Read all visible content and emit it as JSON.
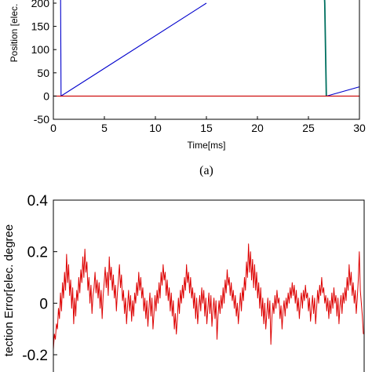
{
  "chart_data": [
    {
      "type": "line",
      "xlabel": "Time[ms]",
      "ylabel": "Position [elec.",
      "caption": "(a)",
      "xlim": [
        0,
        30
      ],
      "ylim": [
        -50,
        200
      ],
      "xticks": [
        "0",
        "5",
        "10",
        "15",
        "20",
        "25",
        "30"
      ],
      "yticks": [
        "-50",
        "0",
        "50",
        "100",
        "150",
        "200"
      ],
      "grid": false,
      "series": [
        {
          "color": "#0000cc",
          "points": [
            [
              0.7,
              250
            ],
            [
              0.75,
              0
            ],
            [
              15.0,
              200
            ]
          ]
        },
        {
          "color": "#0000cc",
          "points": [
            [
              26.8,
              0
            ],
            [
              30.0,
              20
            ]
          ]
        },
        {
          "color": "#007060",
          "points": [
            [
              26.5,
              250
            ],
            [
              26.6,
              200
            ],
            [
              26.75,
              0
            ]
          ]
        },
        {
          "color": "#cc0000",
          "points": [
            [
              0,
              0
            ],
            [
              30,
              0
            ]
          ]
        }
      ]
    },
    {
      "type": "line",
      "ylabel": "tection Error[elec. degree",
      "ylim": [
        -0.2,
        0.4
      ],
      "yticks": [
        "-0.2",
        "0",
        "0.2",
        "0.4"
      ],
      "grid": false,
      "series": [
        {
          "color": "#dd0000",
          "values": [
            -0.18,
            -0.12,
            -0.14,
            -0.08,
            -0.1,
            -0.02,
            -0.06,
            0.04,
            -0.03,
            0.08,
            0.02,
            0.12,
            0.05,
            0.19,
            0.08,
            0.15,
            0.03,
            0.09,
            -0.02,
            0.06,
            -0.08,
            0.02,
            -0.05,
            0.05,
            0.01,
            0.1,
            0.04,
            0.13,
            0.08,
            0.18,
            0.1,
            0.21,
            0.12,
            0.16,
            0.05,
            0.1,
            0.0,
            0.07,
            -0.04,
            0.03,
            0.06,
            0.12,
            0.04,
            0.09,
            0.02,
            0.08,
            -0.02,
            0.05,
            -0.06,
            0.03,
            0.08,
            0.14,
            0.06,
            0.12,
            0.03,
            0.18,
            0.09,
            0.14,
            0.05,
            0.11,
            0.02,
            0.07,
            -0.03,
            0.04,
            0.09,
            0.15,
            0.06,
            0.11,
            0.01,
            0.05,
            -0.04,
            0.02,
            -0.08,
            -0.01,
            0.05,
            -0.03,
            0.03,
            -0.07,
            0.01,
            -0.05,
            0.04,
            0.0,
            0.08,
            0.03,
            0.12,
            0.05,
            0.1,
            0.02,
            0.06,
            -0.03,
            0.02,
            -0.06,
            0.01,
            -0.09,
            -0.02,
            0.04,
            -0.05,
            0.02,
            -0.1,
            -0.04,
            0.03,
            -0.03,
            0.05,
            0.0,
            0.08,
            0.02,
            0.12,
            0.07,
            0.15,
            0.09,
            0.12,
            0.03,
            0.09,
            0.01,
            0.06,
            -0.03,
            0.04,
            -0.05,
            0.01,
            -0.1,
            -0.04,
            -0.12,
            -0.06,
            0.02,
            -0.04,
            0.05,
            0.0,
            0.07,
            0.02,
            0.1,
            0.05,
            0.15,
            0.08,
            0.12,
            0.04,
            0.1,
            0.02,
            0.06,
            -0.02,
            0.04,
            -0.06,
            0.02,
            -0.08,
            -0.02,
            0.03,
            -0.03,
            0.06,
            0.0,
            0.05,
            -0.05,
            0.02,
            -0.08,
            -0.02,
            0.04,
            -0.04,
            0.03,
            -0.09,
            -0.03,
            0.02,
            -0.06,
            0.01,
            -0.14,
            -0.05,
            0.01,
            -0.04,
            0.03,
            -0.02,
            0.06,
            0.0,
            0.09,
            0.04,
            0.13,
            0.07,
            0.1,
            0.03,
            0.08,
            0.01,
            0.05,
            -0.02,
            0.03,
            -0.05,
            0.0,
            -0.08,
            -0.02,
            0.04,
            -0.03,
            0.06,
            0.01,
            0.1,
            0.05,
            0.16,
            0.1,
            0.23,
            0.12,
            0.2,
            0.09,
            0.17,
            0.06,
            0.15,
            0.05,
            0.12,
            0.02,
            0.08,
            -0.02,
            0.06,
            -0.05,
            0.02,
            -0.08,
            0.0,
            -0.1,
            -0.04,
            0.02,
            -0.06,
            0.01,
            -0.16,
            -0.06,
            0.0,
            -0.04,
            0.03,
            -0.02,
            0.05,
            0.0,
            0.02,
            -0.06,
            -0.01,
            -0.1,
            -0.03,
            0.01,
            -0.05,
            0.02,
            -0.02,
            0.04,
            0.0,
            0.06,
            0.02,
            0.08,
            0.03,
            0.07,
            0.0,
            0.05,
            -0.03,
            0.02,
            -0.06,
            0.0,
            0.04,
            -0.02,
            0.05,
            0.01,
            0.07,
            0.02,
            0.04,
            -0.03,
            0.02,
            -0.07,
            -0.02,
            0.03,
            -0.04,
            0.02,
            -0.08,
            -0.02,
            0.05,
            0.0,
            0.07,
            0.03,
            0.1,
            0.04,
            0.06,
            0.0,
            0.03,
            -0.03,
            0.02,
            -0.06,
            0.01,
            -0.04,
            0.04,
            -0.02,
            0.06,
            0.0,
            0.03,
            -0.05,
            0.02,
            -0.08,
            -0.01,
            0.03,
            -0.04,
            0.04,
            0.0,
            0.06,
            0.01,
            0.1,
            0.05,
            0.15,
            0.07,
            0.12,
            0.03,
            0.08,
            0.0,
            0.05,
            -0.04,
            0.02,
            0.09,
            0.2,
            0.05,
            0.0,
            -0.05,
            -0.12
          ]
        }
      ]
    }
  ]
}
